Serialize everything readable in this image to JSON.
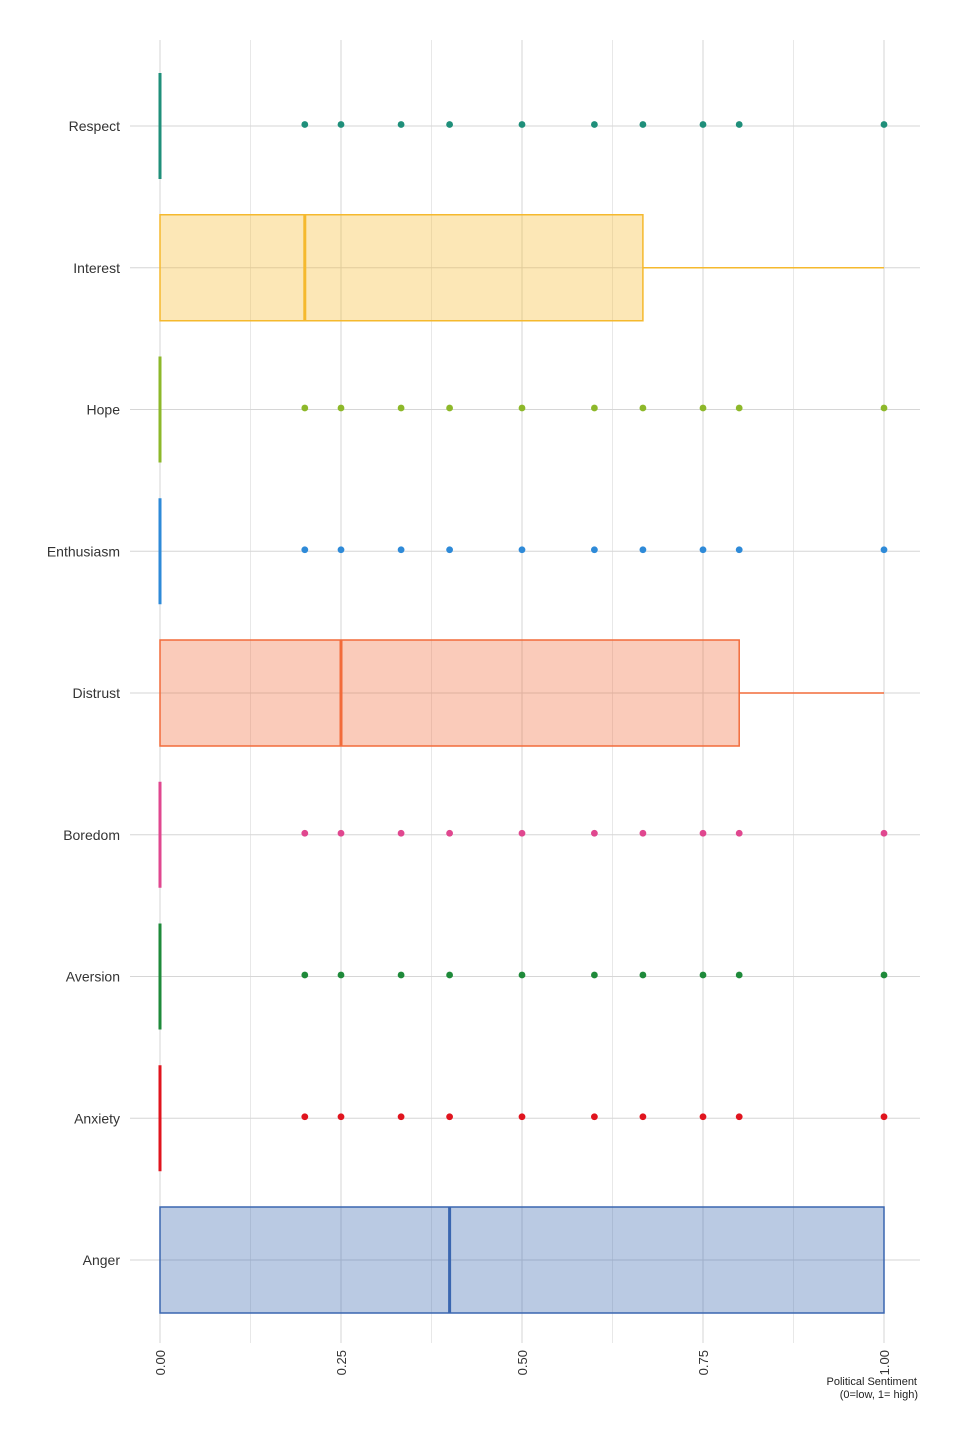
{
  "chart_data": {
    "type": "boxplot",
    "orientation": "horizontal",
    "title": "",
    "xlabel_lines": [
      "Political Sentiment",
      "(0=low, 1= high)"
    ],
    "ylabel": "",
    "xlim": [
      0,
      1
    ],
    "x_ticks": [
      0,
      0.25,
      0.5,
      0.75,
      1.0
    ],
    "x_tick_labels": [
      "0.00",
      "0.25",
      "0.50",
      "0.75",
      "1.00"
    ],
    "grid": true,
    "legend": "none",
    "categories": [
      "Respect",
      "Interest",
      "Hope",
      "Enthusiasm",
      "Distrust",
      "Boredom",
      "Aversion",
      "Anxiety",
      "Anger"
    ],
    "series": [
      {
        "category": "Respect",
        "color": "#1f8f7a",
        "q1": 0,
        "median": 0,
        "q3": 0,
        "whisker_low": 0,
        "whisker_high": 0,
        "outliers": [
          0.2,
          0.25,
          0.333,
          0.4,
          0.5,
          0.6,
          0.667,
          0.75,
          0.8,
          1.0
        ]
      },
      {
        "category": "Interest",
        "color": "#f5b92e",
        "q1": 0,
        "median": 0.2,
        "q3": 0.667,
        "whisker_low": 0,
        "whisker_high": 1.0,
        "outliers": []
      },
      {
        "category": "Hope",
        "color": "#8db82a",
        "q1": 0,
        "median": 0,
        "q3": 0,
        "whisker_low": 0,
        "whisker_high": 0,
        "outliers": [
          0.2,
          0.25,
          0.333,
          0.4,
          0.5,
          0.6,
          0.667,
          0.75,
          0.8,
          1.0
        ]
      },
      {
        "category": "Enthusiasm",
        "color": "#2e8ad8",
        "q1": 0,
        "median": 0,
        "q3": 0,
        "whisker_low": 0,
        "whisker_high": 0,
        "outliers": [
          0.2,
          0.25,
          0.333,
          0.4,
          0.5,
          0.6,
          0.667,
          0.75,
          0.8,
          1.0
        ]
      },
      {
        "category": "Distrust",
        "color": "#f26b3a",
        "q1": 0,
        "median": 0.25,
        "q3": 0.8,
        "whisker_low": 0,
        "whisker_high": 1.0,
        "outliers": []
      },
      {
        "category": "Boredom",
        "color": "#e0478f",
        "q1": 0,
        "median": 0,
        "q3": 0,
        "whisker_low": 0,
        "whisker_high": 0,
        "outliers": [
          0.2,
          0.25,
          0.333,
          0.4,
          0.5,
          0.6,
          0.667,
          0.75,
          0.8,
          1.0
        ]
      },
      {
        "category": "Aversion",
        "color": "#1e8a3a",
        "q1": 0,
        "median": 0,
        "q3": 0,
        "whisker_low": 0,
        "whisker_high": 0,
        "outliers": [
          0.2,
          0.25,
          0.333,
          0.4,
          0.5,
          0.6,
          0.667,
          0.75,
          0.8,
          1.0
        ]
      },
      {
        "category": "Anxiety",
        "color": "#e0141e",
        "q1": 0,
        "median": 0,
        "q3": 0,
        "whisker_low": 0,
        "whisker_high": 0,
        "outliers": [
          0.2,
          0.25,
          0.333,
          0.4,
          0.5,
          0.6,
          0.667,
          0.75,
          0.8,
          1.0
        ]
      },
      {
        "category": "Anger",
        "color": "#3a66b0",
        "q1": 0,
        "median": 0.4,
        "q3": 1.0,
        "whisker_low": 0,
        "whisker_high": 1.0,
        "outliers": []
      }
    ]
  }
}
